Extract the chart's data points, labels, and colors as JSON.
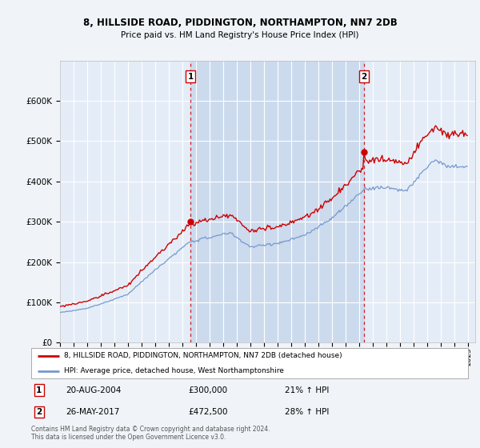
{
  "title": "8, HILLSIDE ROAD, PIDDINGTON, NORTHAMPTON, NN7 2DB",
  "subtitle": "Price paid vs. HM Land Registry's House Price Index (HPI)",
  "line1_label": "8, HILLSIDE ROAD, PIDDINGTON, NORTHAMPTON, NN7 2DB (detached house)",
  "line2_label": "HPI: Average price, detached house, West Northamptonshire",
  "line1_color": "#cc0000",
  "line2_color": "#7799cc",
  "purchase1_date": "20-AUG-2004",
  "purchase1_price": 300000,
  "purchase1_hpi": "21% ↑ HPI",
  "purchase2_date": "26-MAY-2017",
  "purchase2_price": 472500,
  "purchase2_hpi": "28% ↑ HPI",
  "vline_color": "#cc0000",
  "background_color": "#f0f4f8",
  "plot_background": "#e4edf7",
  "shade_color": "#ccdaee",
  "grid_color": "#ffffff",
  "copyright_text": "Contains HM Land Registry data © Crown copyright and database right 2024.\nThis data is licensed under the Open Government Licence v3.0.",
  "ylim": [
    0,
    700000
  ],
  "yticks": [
    0,
    100000,
    200000,
    300000,
    400000,
    500000,
    600000
  ],
  "start_year": 1995,
  "end_year": 2025
}
